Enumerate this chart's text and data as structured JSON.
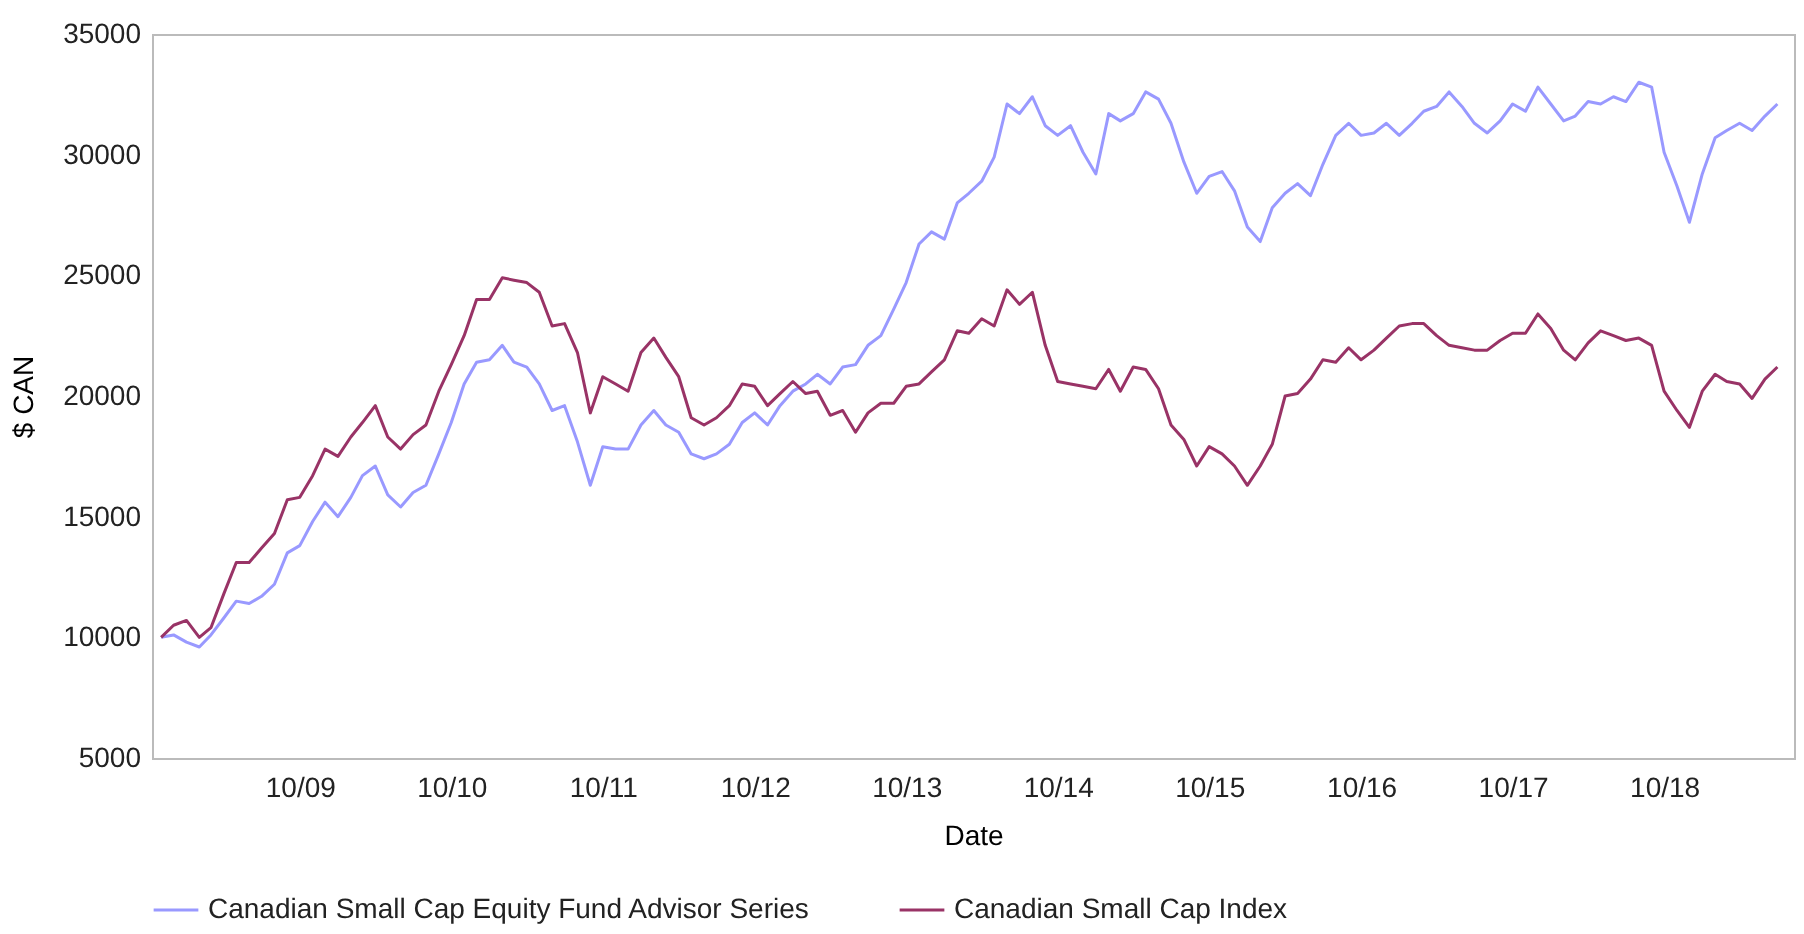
{
  "chart_data": {
    "type": "line",
    "xlabel": "Date",
    "ylabel": "$ CAN",
    "x": [
      "2008-11",
      "2008-12",
      "2009-01",
      "2009-02",
      "2009-03",
      "2009-04",
      "2009-05",
      "2009-06",
      "2009-07",
      "2009-08",
      "2009-09",
      "2009-10",
      "2009-11",
      "2009-12",
      "2010-01",
      "2010-02",
      "2010-03",
      "2010-04",
      "2010-05",
      "2010-06",
      "2010-07",
      "2010-08",
      "2010-09",
      "2010-10",
      "2010-11",
      "2010-12",
      "2011-01",
      "2011-02",
      "2011-03",
      "2011-04",
      "2011-05",
      "2011-06",
      "2011-07",
      "2011-08",
      "2011-09",
      "2011-10",
      "2011-11",
      "2011-12",
      "2012-01",
      "2012-02",
      "2012-03",
      "2012-04",
      "2012-05",
      "2012-06",
      "2012-07",
      "2012-08",
      "2012-09",
      "2012-10",
      "2012-11",
      "2012-12",
      "2013-01",
      "2013-02",
      "2013-03",
      "2013-04",
      "2013-05",
      "2013-06",
      "2013-07",
      "2013-08",
      "2013-09",
      "2013-10",
      "2013-11",
      "2013-12",
      "2014-01",
      "2014-02",
      "2014-03",
      "2014-04",
      "2014-05",
      "2014-06",
      "2014-07",
      "2014-08",
      "2014-09",
      "2014-10",
      "2014-11",
      "2014-12",
      "2015-01",
      "2015-02",
      "2015-03",
      "2015-04",
      "2015-05",
      "2015-06",
      "2015-07",
      "2015-08",
      "2015-09",
      "2015-10",
      "2015-11",
      "2015-12",
      "2016-01",
      "2016-02",
      "2016-03",
      "2016-04",
      "2016-05",
      "2016-06",
      "2016-07",
      "2016-08",
      "2016-09",
      "2016-10",
      "2016-11",
      "2016-12",
      "2017-01",
      "2017-02",
      "2017-03",
      "2017-04",
      "2017-05",
      "2017-06",
      "2017-07",
      "2017-08",
      "2017-09",
      "2017-10",
      "2017-11",
      "2017-12",
      "2018-01",
      "2018-02",
      "2018-03",
      "2018-04",
      "2018-05",
      "2018-06",
      "2018-07",
      "2018-08",
      "2018-09",
      "2018-10",
      "2018-11",
      "2018-12",
      "2019-01",
      "2019-02",
      "2019-03",
      "2019-04",
      "2019-05",
      "2019-06",
      "2019-07"
    ],
    "series": [
      {
        "name": "Canadian Small Cap Equity Fund Advisor Series",
        "color": "#9999ff",
        "values": [
          10000,
          10100,
          9800,
          9600,
          10100,
          10800,
          11500,
          11400,
          11700,
          12200,
          13500,
          13800,
          14800,
          15600,
          15000,
          15800,
          16700,
          17100,
          15900,
          15400,
          16000,
          16300,
          17600,
          18900,
          20500,
          21400,
          21500,
          22100,
          21400,
          21200,
          20500,
          19400,
          19600,
          18100,
          16300,
          17900,
          17800,
          17800,
          18800,
          19400,
          18800,
          18500,
          17600,
          17400,
          17600,
          18000,
          18900,
          19300,
          18800,
          19600,
          20200,
          20500,
          20900,
          20500,
          21200,
          21300,
          22100,
          22500,
          23600,
          24700,
          26300,
          26800,
          26500,
          28000,
          28400,
          28900,
          29900,
          32100,
          31700,
          32400,
          31200,
          30800,
          31200,
          30100,
          29200,
          31700,
          31400,
          31700,
          32600,
          32300,
          31300,
          29700,
          28400,
          29100,
          29300,
          28500,
          27000,
          26400,
          27800,
          28400,
          28800,
          28300,
          29600,
          30800,
          31300,
          30800,
          30900,
          31300,
          30800,
          31300,
          31800,
          32000,
          32600,
          32000,
          31300,
          30900,
          31400,
          32100,
          31800,
          32800,
          32100,
          31400,
          31600,
          32200,
          32100,
          32400,
          32200,
          33000,
          32800,
          30100,
          28700,
          27200,
          29200,
          30700,
          31000,
          31300,
          31000,
          31600,
          32100
        ]
      },
      {
        "name": "Canadian Small Cap Index",
        "color": "#993366",
        "values": [
          10000,
          10500,
          10700,
          10000,
          10400,
          11800,
          13100,
          13100,
          13700,
          14300,
          15700,
          15800,
          16700,
          17800,
          17500,
          18300,
          18900,
          19600,
          18300,
          17800,
          18400,
          18800,
          20200,
          21300,
          22500,
          24000,
          24000,
          24900,
          24800,
          24700,
          24300,
          22900,
          23000,
          21800,
          19300,
          20800,
          20500,
          20200,
          21800,
          22400,
          21600,
          20800,
          19100,
          18800,
          19100,
          19600,
          20500,
          20400,
          19600,
          20100,
          20600,
          20100,
          20200,
          19200,
          19400,
          18500,
          19300,
          19700,
          19700,
          20400,
          20500,
          21000,
          21500,
          22700,
          22600,
          23200,
          22900,
          24400,
          23800,
          24300,
          22100,
          20600,
          20500,
          20400,
          20300,
          21100,
          20200,
          21200,
          21100,
          20300,
          18800,
          18200,
          17100,
          17900,
          17600,
          17100,
          16300,
          17100,
          18000,
          20000,
          20100,
          20700,
          21500,
          21400,
          22000,
          21500,
          21900,
          22400,
          22900,
          23000,
          23000,
          22500,
          22100,
          22000,
          21900,
          21900,
          22300,
          22600,
          22600,
          23400,
          22800,
          21900,
          21500,
          22200,
          22700,
          22500,
          22300,
          22400,
          22100,
          20200,
          19400,
          18700,
          20200,
          20900,
          20600,
          20500,
          19900,
          20700,
          21200
        ]
      }
    ],
    "xlim": [
      "2008-10-10",
      "2019-08-10"
    ],
    "xticks": [
      {
        "value": "2009-10",
        "label": "10/09"
      },
      {
        "value": "2010-10",
        "label": "10/10"
      },
      {
        "value": "2011-10",
        "label": "10/11"
      },
      {
        "value": "2012-10",
        "label": "10/12"
      },
      {
        "value": "2013-10",
        "label": "10/13"
      },
      {
        "value": "2014-10",
        "label": "10/14"
      },
      {
        "value": "2015-10",
        "label": "10/15"
      },
      {
        "value": "2016-10",
        "label": "10/16"
      },
      {
        "value": "2017-10",
        "label": "10/17"
      },
      {
        "value": "2018-10",
        "label": "10/18"
      }
    ],
    "ylim": [
      5000,
      35000
    ],
    "yticks": [
      5000,
      10000,
      15000,
      20000,
      25000,
      30000,
      35000
    ],
    "grid": false,
    "legend": "bottom",
    "marker": "none",
    "line_style": "solid"
  }
}
